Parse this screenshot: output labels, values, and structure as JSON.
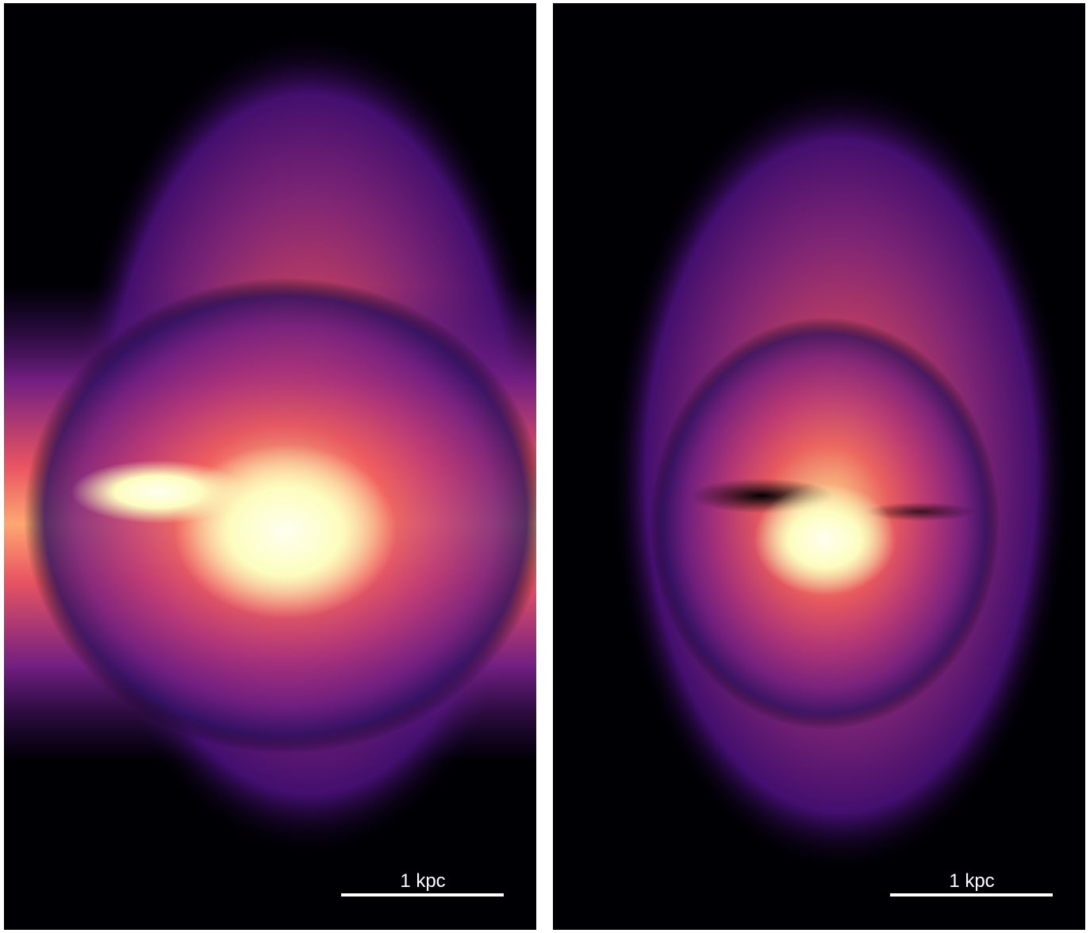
{
  "panels": [
    {
      "scale_bar_label": "1 kpc"
    },
    {
      "scale_bar_label": "1 kpc"
    }
  ]
}
